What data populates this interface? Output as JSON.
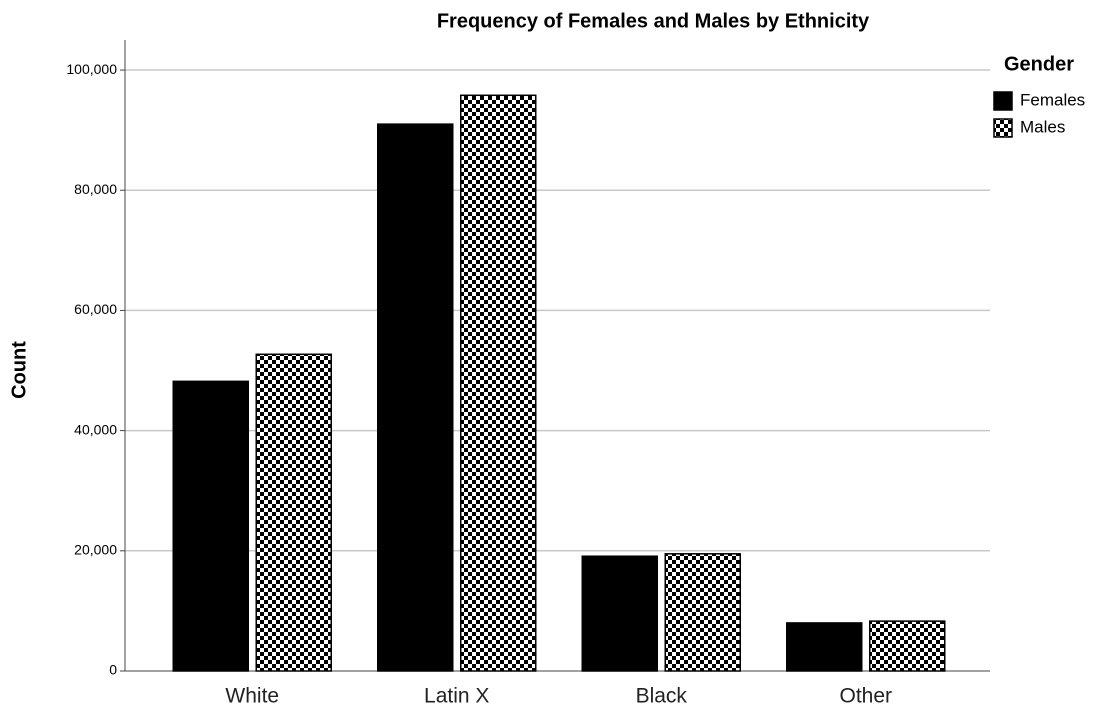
{
  "chart_data": {
    "type": "bar",
    "title": "Frequency of Females and Males by Ethnicity",
    "y_label": "Count",
    "legend_title": "Gender",
    "legend_position": "right",
    "categories": [
      "White",
      "Latin X",
      "Black",
      "Other"
    ],
    "series": [
      {
        "name": "Females",
        "color": "#000000",
        "fill": "solid",
        "values": [
          48200,
          91000,
          19100,
          8000
        ]
      },
      {
        "name": "Males",
        "color": "#000000",
        "fill": "checker",
        "values": [
          52700,
          95800,
          19500,
          8300
        ]
      }
    ],
    "ylim": [
      0,
      105000
    ],
    "yticks": [
      0,
      {
        "value": 20000,
        "label": "20,000"
      },
      {
        "value": 40000,
        "label": "40,000"
      },
      {
        "value": 60000,
        "label": "60,000"
      },
      {
        "value": 80000,
        "label": "80,000"
      },
      {
        "value": 100000,
        "label": "100,000"
      }
    ],
    "grid": true
  }
}
